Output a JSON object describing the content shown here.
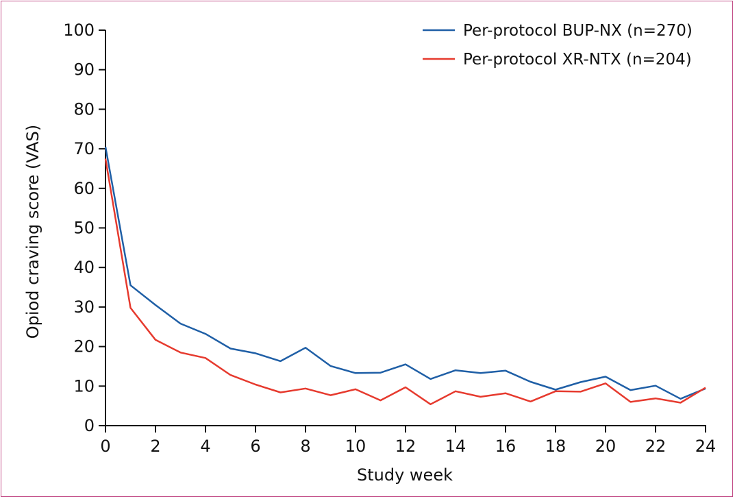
{
  "chart_data": {
    "type": "line",
    "title": "",
    "xlabel": "Study week",
    "ylabel": "Opiod craving score (VAS)",
    "xlim": [
      0,
      24
    ],
    "ylim": [
      0,
      100
    ],
    "x_ticks": [
      "0",
      "2",
      "4",
      "6",
      "8",
      "10",
      "12",
      "14",
      "16",
      "18",
      "20",
      "22",
      "24"
    ],
    "y_ticks": [
      "0",
      "10",
      "20",
      "30",
      "40",
      "50",
      "60",
      "70",
      "80",
      "90",
      "100"
    ],
    "grid": false,
    "legend_position": "top-right",
    "x": [
      0,
      1,
      2,
      3,
      4,
      5,
      6,
      7,
      8,
      9,
      10,
      11,
      12,
      13,
      14,
      15,
      16,
      17,
      18,
      19,
      20,
      21,
      22,
      23,
      24
    ],
    "series": [
      {
        "name": "Per-protocol BUP-NX (n=270)",
        "color": "#1f5fa6",
        "values": [
          70.5,
          35.5,
          30.5,
          25.8,
          23.2,
          19.5,
          18.3,
          16.3,
          19.7,
          15.1,
          13.3,
          13.4,
          15.5,
          11.8,
          14.0,
          13.3,
          13.9,
          11.1,
          9.1,
          11.0,
          12.4,
          9.0,
          10.1,
          6.8,
          9.4
        ]
      },
      {
        "name": "Per-protocol XR-NTX (n=204)",
        "color": "#e63a2e",
        "values": [
          67.5,
          29.8,
          21.7,
          18.5,
          17.1,
          12.8,
          10.4,
          8.4,
          9.4,
          7.7,
          9.2,
          6.4,
          9.7,
          5.4,
          8.7,
          7.3,
          8.2,
          6.1,
          8.7,
          8.6,
          10.7,
          6.0,
          6.9,
          5.8,
          9.6
        ]
      }
    ]
  }
}
